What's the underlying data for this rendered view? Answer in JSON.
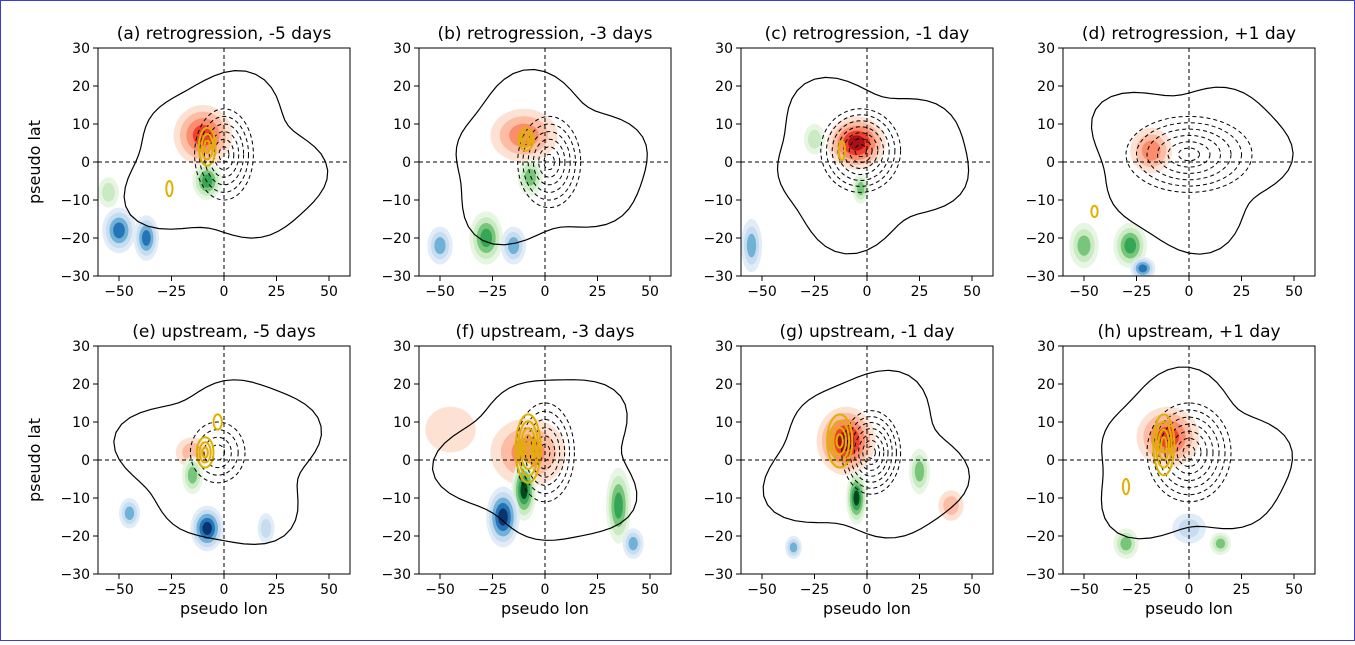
{
  "figure": {
    "ylabel": "pseudo lat",
    "xlabel": "pseudo lon"
  },
  "chart_data": [
    {
      "type": "heatmap",
      "panel": "a",
      "title": "(a) retrogression, -5 days",
      "xlim": [
        -60,
        60
      ],
      "ylim": [
        -30,
        30
      ],
      "xticks": [
        "−50",
        "−25",
        "0",
        "25",
        "50"
      ],
      "yticks": [
        "30",
        "20",
        "10",
        "0",
        "−10",
        "−20",
        "−30"
      ],
      "grid": false,
      "blobs": [
        {
          "x": -10,
          "y": 7,
          "rx": 14,
          "ry": 8,
          "color": "red",
          "strength": 0.7
        },
        {
          "x": -8,
          "y": -5,
          "rx": 7,
          "ry": 5,
          "color": "green",
          "strength": 0.8
        },
        {
          "x": -50,
          "y": -18,
          "rx": 8,
          "ry": 6,
          "color": "blue",
          "strength": 0.8
        },
        {
          "x": -37,
          "y": -20,
          "rx": 6,
          "ry": 6,
          "color": "blue",
          "strength": 0.8
        },
        {
          "x": -55,
          "y": -8,
          "rx": 5,
          "ry": 4,
          "color": "green",
          "strength": 0.4
        }
      ],
      "dashed": {
        "x": 0,
        "y": 2,
        "rx": 14,
        "ry": 12,
        "n": 6
      },
      "yellow": [
        {
          "x": -8,
          "y": 4,
          "rx": 4,
          "ry": 5,
          "n": 3
        },
        {
          "x": -26,
          "y": -7,
          "rx": 1.5,
          "ry": 2,
          "n": 1
        }
      ]
    },
    {
      "type": "heatmap",
      "panel": "b",
      "title": "(b) retrogression, -3 days",
      "xlim": [
        -60,
        60
      ],
      "ylim": [
        -30,
        30
      ],
      "xticks": [
        "−50",
        "−25",
        "0",
        "25",
        "50"
      ],
      "yticks": [
        "30",
        "20",
        "10",
        "0",
        "−10",
        "−20",
        "−30"
      ],
      "grid": false,
      "blobs": [
        {
          "x": -10,
          "y": 7,
          "rx": 16,
          "ry": 7,
          "color": "red",
          "strength": 0.6
        },
        {
          "x": -7,
          "y": -4,
          "rx": 6,
          "ry": 5,
          "color": "green",
          "strength": 0.6
        },
        {
          "x": -28,
          "y": -20,
          "rx": 8,
          "ry": 7,
          "color": "green",
          "strength": 0.8
        },
        {
          "x": -15,
          "y": -22,
          "rx": 6,
          "ry": 5,
          "color": "blue",
          "strength": 0.6
        },
        {
          "x": -50,
          "y": -22,
          "rx": 6,
          "ry": 5,
          "color": "blue",
          "strength": 0.5
        }
      ],
      "dashed": {
        "x": 2,
        "y": 0,
        "rx": 15,
        "ry": 12,
        "n": 6
      },
      "yellow": [
        {
          "x": -9,
          "y": 6,
          "rx": 3.5,
          "ry": 3,
          "n": 3
        }
      ]
    },
    {
      "type": "heatmap",
      "panel": "c",
      "title": "(c) retrogression, -1 day",
      "xlim": [
        -60,
        60
      ],
      "ylim": [
        -30,
        30
      ],
      "xticks": [
        "−50",
        "−25",
        "0",
        "25",
        "50"
      ],
      "yticks": [
        "30",
        "20",
        "10",
        "0",
        "−10",
        "−20",
        "−30"
      ],
      "grid": false,
      "blobs": [
        {
          "x": -5,
          "y": 5,
          "rx": 14,
          "ry": 7,
          "color": "red",
          "strength": 0.9
        },
        {
          "x": -3,
          "y": -7,
          "rx": 4,
          "ry": 4,
          "color": "green",
          "strength": 0.6
        },
        {
          "x": -55,
          "y": -22,
          "rx": 5,
          "ry": 7,
          "color": "blue",
          "strength": 0.5
        },
        {
          "x": -25,
          "y": 6,
          "rx": 5,
          "ry": 4,
          "color": "green",
          "strength": 0.3
        }
      ],
      "dashed": {
        "x": -3,
        "y": 3,
        "rx": 19,
        "ry": 11,
        "n": 7
      },
      "yellow": [
        {
          "x": -12,
          "y": 3,
          "rx": 1.5,
          "ry": 2.5,
          "n": 1
        }
      ]
    },
    {
      "type": "heatmap",
      "panel": "d",
      "title": "(d) retrogression, +1 day",
      "xlim": [
        -60,
        60
      ],
      "ylim": [
        -30,
        30
      ],
      "xticks": [
        "−50",
        "−25",
        "0",
        "25",
        "50"
      ],
      "yticks": [
        "30",
        "20",
        "10",
        "0",
        "−10",
        "−20",
        "−30"
      ],
      "grid": false,
      "blobs": [
        {
          "x": -18,
          "y": 3,
          "rx": 10,
          "ry": 6,
          "color": "red",
          "strength": 0.6
        },
        {
          "x": -28,
          "y": -22,
          "rx": 8,
          "ry": 6,
          "color": "green",
          "strength": 0.8
        },
        {
          "x": -22,
          "y": -28,
          "rx": 6,
          "ry": 3,
          "color": "blue",
          "strength": 0.8
        },
        {
          "x": -50,
          "y": -22,
          "rx": 7,
          "ry": 6,
          "color": "green",
          "strength": 0.5
        }
      ],
      "dashed": {
        "x": 0,
        "y": 2,
        "rx": 30,
        "ry": 10,
        "n": 6
      },
      "yellow": [
        {
          "x": -45,
          "y": -13,
          "rx": 1.5,
          "ry": 1.5,
          "n": 1
        }
      ]
    },
    {
      "type": "heatmap",
      "panel": "e",
      "title": "(e) upstream, -5 days",
      "xlim": [
        -60,
        60
      ],
      "ylim": [
        -30,
        30
      ],
      "xticks": [
        "−50",
        "−25",
        "0",
        "25",
        "50"
      ],
      "yticks": [
        "30",
        "20",
        "10",
        "0",
        "−10",
        "−20",
        "−30"
      ],
      "grid": false,
      "blobs": [
        {
          "x": -15,
          "y": 2,
          "rx": 8,
          "ry": 4,
          "color": "red",
          "strength": 0.3
        },
        {
          "x": -8,
          "y": -18,
          "rx": 8,
          "ry": 6,
          "color": "blue",
          "strength": 0.9
        },
        {
          "x": -15,
          "y": -4,
          "rx": 5,
          "ry": 5,
          "color": "green",
          "strength": 0.5
        },
        {
          "x": -45,
          "y": -14,
          "rx": 5,
          "ry": 4,
          "color": "blue",
          "strength": 0.6
        },
        {
          "x": 20,
          "y": -18,
          "rx": 4,
          "ry": 4,
          "color": "blue",
          "strength": 0.3
        }
      ],
      "dashed": {
        "x": -3,
        "y": 2,
        "rx": 13,
        "ry": 8,
        "n": 4
      },
      "yellow": [
        {
          "x": -9,
          "y": 2,
          "rx": 4,
          "ry": 4,
          "n": 3
        },
        {
          "x": -3,
          "y": 10,
          "rx": 2,
          "ry": 2,
          "n": 1
        }
      ]
    },
    {
      "type": "heatmap",
      "panel": "f",
      "title": "(f) upstream, -3 days",
      "xlim": [
        -60,
        60
      ],
      "ylim": [
        -30,
        30
      ],
      "xticks": [
        "−50",
        "−25",
        "0",
        "25",
        "50"
      ],
      "yticks": [
        "30",
        "20",
        "10",
        "0",
        "−10",
        "−20",
        "−30"
      ],
      "grid": false,
      "blobs": [
        {
          "x": -8,
          "y": 2,
          "rx": 18,
          "ry": 9,
          "color": "red",
          "strength": 0.5
        },
        {
          "x": -10,
          "y": -8,
          "rx": 6,
          "ry": 8,
          "color": "green",
          "strength": 0.9
        },
        {
          "x": -20,
          "y": -15,
          "rx": 8,
          "ry": 8,
          "color": "blue",
          "strength": 0.9
        },
        {
          "x": 35,
          "y": -12,
          "rx": 6,
          "ry": 10,
          "color": "green",
          "strength": 0.7
        },
        {
          "x": 42,
          "y": -22,
          "rx": 5,
          "ry": 4,
          "color": "blue",
          "strength": 0.6
        },
        {
          "x": -45,
          "y": 8,
          "rx": 12,
          "ry": 6,
          "color": "red",
          "strength": 0.2
        }
      ],
      "dashed": {
        "x": 0,
        "y": 2,
        "rx": 14,
        "ry": 13,
        "n": 6
      },
      "yellow": [
        {
          "x": -8,
          "y": 3,
          "rx": 6,
          "ry": 9,
          "n": 5
        }
      ]
    },
    {
      "type": "heatmap",
      "panel": "g",
      "title": "(g) upstream, -1 day",
      "xlim": [
        -60,
        60
      ],
      "ylim": [
        -30,
        30
      ],
      "xticks": [
        "−50",
        "−25",
        "0",
        "25",
        "50"
      ],
      "yticks": [
        "30",
        "20",
        "10",
        "0",
        "−10",
        "−20",
        "−30"
      ],
      "grid": false,
      "blobs": [
        {
          "x": -10,
          "y": 5,
          "rx": 14,
          "ry": 9,
          "color": "red",
          "strength": 1.0
        },
        {
          "x": -5,
          "y": -10,
          "rx": 5,
          "ry": 7,
          "color": "green",
          "strength": 0.9
        },
        {
          "x": 25,
          "y": -3,
          "rx": 5,
          "ry": 6,
          "color": "green",
          "strength": 0.5
        },
        {
          "x": -35,
          "y": -23,
          "rx": 4,
          "ry": 3,
          "color": "blue",
          "strength": 0.5
        },
        {
          "x": 40,
          "y": -12,
          "rx": 6,
          "ry": 4,
          "color": "red",
          "strength": 0.3
        }
      ],
      "dashed": {
        "x": 2,
        "y": 2,
        "rx": 14,
        "ry": 11,
        "n": 7
      },
      "yellow": [
        {
          "x": -13,
          "y": 5,
          "rx": 6,
          "ry": 7,
          "n": 4
        }
      ]
    },
    {
      "type": "heatmap",
      "panel": "h",
      "title": "(h) upstream, +1 day",
      "xlim": [
        -60,
        60
      ],
      "ylim": [
        -30,
        30
      ],
      "xticks": [
        "−50",
        "−25",
        "0",
        "25",
        "50"
      ],
      "yticks": [
        "30",
        "20",
        "10",
        "0",
        "−10",
        "−20",
        "−30"
      ],
      "grid": false,
      "blobs": [
        {
          "x": -10,
          "y": 6,
          "rx": 15,
          "ry": 8,
          "color": "red",
          "strength": 0.7
        },
        {
          "x": -30,
          "y": -22,
          "rx": 6,
          "ry": 4,
          "color": "green",
          "strength": 0.5
        },
        {
          "x": 15,
          "y": -22,
          "rx": 5,
          "ry": 3,
          "color": "green",
          "strength": 0.6
        },
        {
          "x": 0,
          "y": -18,
          "rx": 8,
          "ry": 4,
          "color": "blue",
          "strength": 0.4
        }
      ],
      "dashed": {
        "x": 0,
        "y": 2,
        "rx": 20,
        "ry": 13,
        "n": 7
      },
      "yellow": [
        {
          "x": -12,
          "y": 4,
          "rx": 5,
          "ry": 8,
          "n": 4
        },
        {
          "x": -30,
          "y": -7,
          "rx": 1.5,
          "ry": 2,
          "n": 1
        }
      ]
    }
  ]
}
